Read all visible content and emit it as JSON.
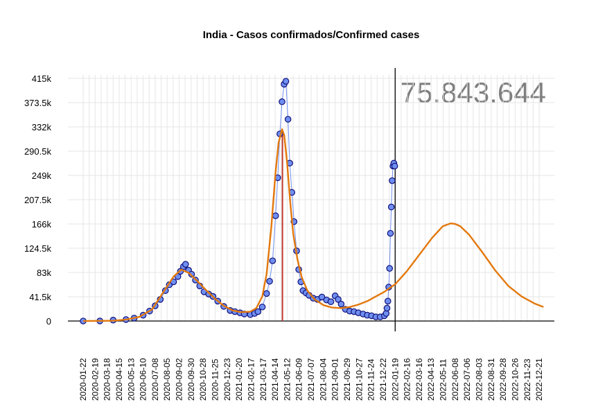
{
  "chart_data": {
    "type": "scatter",
    "title": "India - Casos confirmados/Confirmed cases",
    "total_label": "75.843.644",
    "xlabel": "",
    "ylabel": "",
    "ylim": [
      0,
      415000
    ],
    "xlim": [
      "2020-01-22",
      "2022-12-31"
    ],
    "y_ticks": [
      "0",
      "41.5k",
      "83k",
      "124.5k",
      "166k",
      "207.5k",
      "249k",
      "290.5k",
      "332k",
      "373.5k",
      "415k"
    ],
    "y_tick_values": [
      0,
      41500,
      83000,
      124500,
      166000,
      207500,
      249000,
      290500,
      332000,
      373500,
      415000
    ],
    "x_ticks": [
      "2020-01-22",
      "2020-02-19",
      "2020-03-18",
      "2020-04-15",
      "2020-05-13",
      "2020-06-10",
      "2020-07-08",
      "2020-08-05",
      "2020-09-02",
      "2020-09-30",
      "2020-10-28",
      "2020-11-25",
      "2020-12-23",
      "2021-01-20",
      "2021-02-17",
      "2021-03-17",
      "2021-04-14",
      "2021-05-12",
      "2021-06-09",
      "2021-07-07",
      "2021-08-04",
      "2021-09-01",
      "2021-09-29",
      "2021-10-27",
      "2021-11-24",
      "2021-12-22",
      "2022-01-19",
      "2022-02-16",
      "2022-03-16",
      "2022-04-13",
      "2022-05-11",
      "2022-06-08",
      "2022-07-06",
      "2022-08-03",
      "2022-08-31",
      "2022-09-28",
      "2022-10-26",
      "2022-11-23",
      "2022-12-21"
    ],
    "grid": true,
    "current_date_marker": "2022-01-19",
    "peak_marker": "2021-05-01",
    "colors": {
      "points_fill": "#6f8ff0",
      "points_stroke": "#11117a",
      "fit_line": "#e3780c",
      "peak_line": "#c0392b",
      "vertical_now": "#000000",
      "grid": "#e6e6e6"
    },
    "series": [
      {
        "type": "scatter",
        "x": [
          "2020-01-22",
          "2020-03-01",
          "2020-04-01",
          "2020-05-01",
          "2020-05-20",
          "2020-06-10",
          "2020-06-25",
          "2020-07-08",
          "2020-07-20",
          "2020-08-01",
          "2020-08-10",
          "2020-08-20",
          "2020-08-30",
          "2020-09-05",
          "2020-09-12",
          "2020-09-17",
          "2020-09-24",
          "2020-10-01",
          "2020-10-10",
          "2020-10-20",
          "2020-10-30",
          "2020-11-10",
          "2020-11-20",
          "2020-12-01",
          "2020-12-15",
          "2020-12-30",
          "2021-01-10",
          "2021-01-22",
          "2021-02-01",
          "2021-02-15",
          "2021-02-25",
          "2021-03-05",
          "2021-03-15",
          "2021-03-25",
          "2021-04-01",
          "2021-04-08",
          "2021-04-15",
          "2021-04-20",
          "2021-04-25",
          "2021-04-30",
          "2021-05-05",
          "2021-05-09",
          "2021-05-14",
          "2021-05-18",
          "2021-05-23",
          "2021-05-28",
          "2021-06-03",
          "2021-06-08",
          "2021-06-13",
          "2021-06-18",
          "2021-06-25",
          "2021-07-02",
          "2021-07-12",
          "2021-07-22",
          "2021-08-01",
          "2021-08-12",
          "2021-08-22",
          "2021-09-01",
          "2021-09-08",
          "2021-09-15",
          "2021-09-25",
          "2021-10-05",
          "2021-10-15",
          "2021-10-25",
          "2021-11-05",
          "2021-11-15",
          "2021-11-25",
          "2021-12-05",
          "2021-12-15",
          "2021-12-25",
          "2021-12-29",
          "2021-12-31",
          "2022-01-02",
          "2022-01-04",
          "2022-01-06",
          "2022-01-08",
          "2022-01-10",
          "2022-01-12",
          "2022-01-14",
          "2022-01-16",
          "2022-01-18"
        ],
        "values": [
          0,
          100,
          1500,
          2500,
          5000,
          10000,
          17000,
          26000,
          37000,
          52000,
          62000,
          67000,
          76000,
          85000,
          93000,
          97000,
          87000,
          80000,
          70000,
          60000,
          50000,
          46000,
          42000,
          34000,
          25000,
          18000,
          16000,
          14000,
          12000,
          11000,
          13000,
          16000,
          24000,
          47000,
          68000,
          103000,
          180000,
          245000,
          320000,
          375000,
          405000,
          410000,
          345000,
          270000,
          220000,
          170000,
          120000,
          88000,
          67000,
          52000,
          48000,
          44000,
          39000,
          37000,
          41000,
          36000,
          33000,
          43000,
          37000,
          29000,
          20000,
          17000,
          16000,
          14000,
          12000,
          10000,
          9000,
          7000,
          7000,
          9000,
          13000,
          22000,
          34000,
          58000,
          90000,
          150000,
          195000,
          240000,
          265000,
          270000,
          265000
        ]
      },
      {
        "type": "line",
        "x": [
          "2020-01-22",
          "2020-04-01",
          "2020-05-01",
          "2020-06-01",
          "2020-07-01",
          "2020-08-01",
          "2020-08-20",
          "2020-09-07",
          "2020-09-25",
          "2020-10-15",
          "2020-11-05",
          "2020-11-25",
          "2020-12-15",
          "2021-01-05",
          "2021-01-25",
          "2021-02-15",
          "2021-03-01",
          "2021-03-15",
          "2021-03-25",
          "2021-04-05",
          "2021-04-15",
          "2021-04-22",
          "2021-04-30",
          "2021-05-05",
          "2021-05-12",
          "2021-05-19",
          "2021-05-26",
          "2021-06-05",
          "2021-06-15",
          "2021-06-28",
          "2021-07-15",
          "2021-08-05",
          "2021-08-25",
          "2021-09-15",
          "2021-10-05",
          "2021-10-25",
          "2021-11-15",
          "2021-12-05",
          "2021-12-25",
          "2022-01-19",
          "2022-02-15",
          "2022-03-15",
          "2022-04-15",
          "2022-05-10",
          "2022-05-28",
          "2022-06-08",
          "2022-06-20",
          "2022-07-10",
          "2022-08-10",
          "2022-09-10",
          "2022-10-10",
          "2022-11-10",
          "2022-12-10",
          "2022-12-31"
        ],
        "values": [
          0,
          500,
          2500,
          7000,
          20000,
          55000,
          76000,
          88000,
          82000,
          68000,
          52000,
          38000,
          26000,
          18000,
          15000,
          16000,
          22000,
          42000,
          80000,
          160000,
          255000,
          305000,
          328000,
          318000,
          270000,
          205000,
          150000,
          105000,
          75000,
          52000,
          37000,
          27000,
          23000,
          22000,
          24000,
          28000,
          34000,
          42000,
          50000,
          63000,
          85000,
          112000,
          142000,
          162000,
          167000,
          166000,
          162000,
          148000,
          118000,
          86000,
          60000,
          42000,
          30000,
          24000
        ]
      }
    ]
  }
}
